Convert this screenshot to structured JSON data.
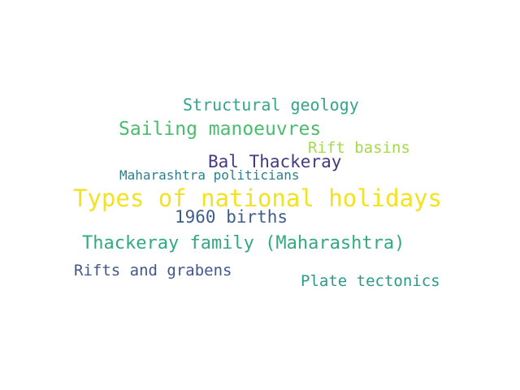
{
  "words": [
    {
      "text": "Structural geology",
      "color": "#35a48a"
    },
    {
      "text": "Sailing manoeuvres",
      "color": "#4bbc6e"
    },
    {
      "text": "Rift basins",
      "color": "#a5d94c"
    },
    {
      "text": "Bal Thackeray",
      "color": "#46397f"
    },
    {
      "text": "Maharashtra politicians",
      "color": "#2c7f8e"
    },
    {
      "text": "Types of national holidays",
      "color": "#f3e21f"
    },
    {
      "text": "1960 births",
      "color": "#3e5d8a"
    },
    {
      "text": "Thackeray family (Maharashtra)",
      "color": "#31aa81"
    },
    {
      "text": "Rifts and grabens",
      "color": "#40578b"
    },
    {
      "text": "Plate tectonics",
      "color": "#2a9a8a"
    }
  ]
}
